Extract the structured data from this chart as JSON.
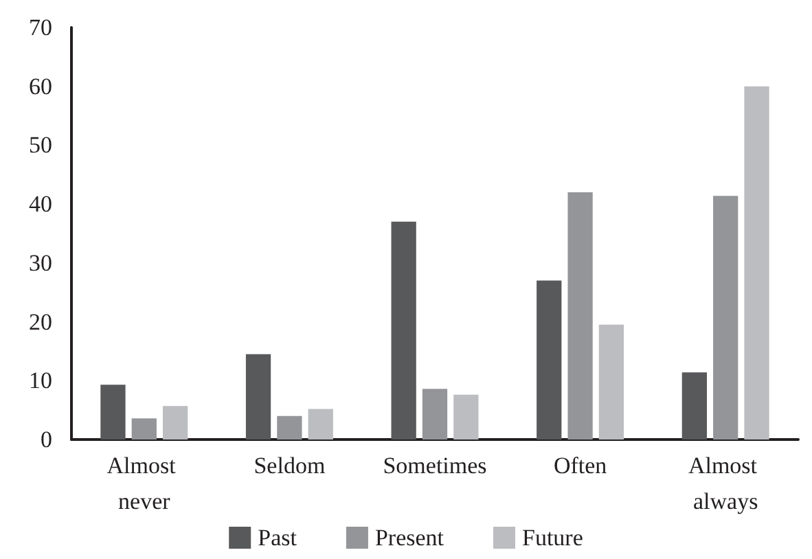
{
  "chart_data": {
    "type": "bar",
    "categories": [
      "Almost never",
      "Seldom",
      "Sometimes",
      "Often",
      "Almost always"
    ],
    "series": [
      {
        "name": "Past",
        "color": "#58595b",
        "values": [
          9.3,
          14.5,
          37,
          27,
          11.4
        ]
      },
      {
        "name": "Present",
        "color": "#939598",
        "values": [
          3.6,
          4,
          8.6,
          42,
          41.4
        ]
      },
      {
        "name": "Future",
        "color": "#bcbdc0",
        "values": [
          5.7,
          5.2,
          7.6,
          19.5,
          60
        ]
      }
    ],
    "ylim": [
      0,
      70
    ],
    "yticks": [
      0,
      10,
      20,
      30,
      40,
      50,
      60,
      70
    ],
    "grid": false,
    "legend": "bottom"
  }
}
